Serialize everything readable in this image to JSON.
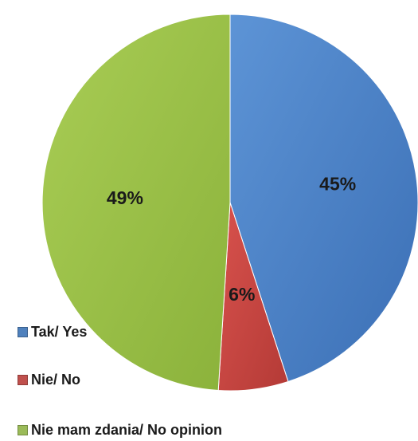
{
  "chart_data": {
    "type": "pie",
    "categories": [
      "Tak/ Yes",
      "Nie/ No",
      "Nie mam zdania/ No opinion"
    ],
    "values": [
      45,
      6,
      49
    ],
    "labels": [
      "45%",
      "6%",
      "49%"
    ],
    "colors": [
      "#4f81bd",
      "#c0504d",
      "#9bbb59"
    ],
    "legend_position": "bottom-left",
    "start_angle": "12 o'clock",
    "direction": "clockwise"
  }
}
